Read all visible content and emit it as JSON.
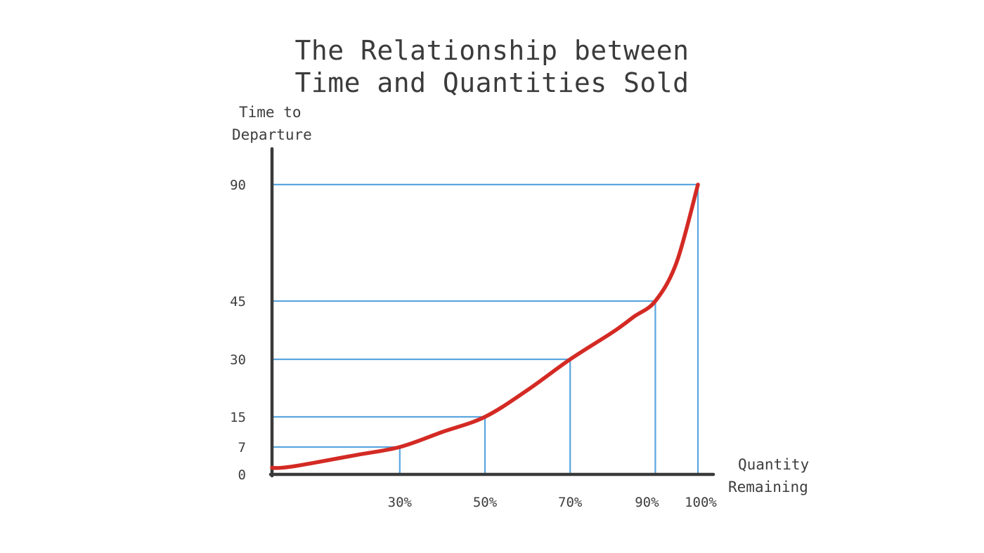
{
  "chart_data": {
    "type": "line",
    "title_line1": "The Relationship between",
    "title_line2": "Time and Quantities Sold",
    "ylabel_line1": "Time to",
    "ylabel_line2": "Departure",
    "xlabel_line1": "Quantity",
    "xlabel_line2": "Remaining",
    "y_ticks": [
      "0",
      "7",
      "15",
      "30",
      "45",
      "90"
    ],
    "x_ticks": [
      "30%",
      "50%",
      "70%",
      "90%",
      "100%"
    ],
    "reference_points": [
      {
        "x": 30,
        "y": 7
      },
      {
        "x": 50,
        "y": 15
      },
      {
        "x": 70,
        "y": 30
      },
      {
        "x": 90,
        "y": 45
      },
      {
        "x": 100,
        "y": 90
      }
    ],
    "series": [
      {
        "x": [
          0,
          10,
          20,
          30,
          40,
          50,
          60,
          70,
          80,
          85,
          90,
          95,
          100
        ],
        "y": [
          1,
          3,
          5,
          7,
          11,
          15,
          22,
          30,
          37,
          41,
          45,
          60,
          90
        ]
      }
    ],
    "colors": {
      "curve": "#d42a24",
      "grid": "#5aa6df",
      "axis": "#3a3a3a"
    }
  }
}
